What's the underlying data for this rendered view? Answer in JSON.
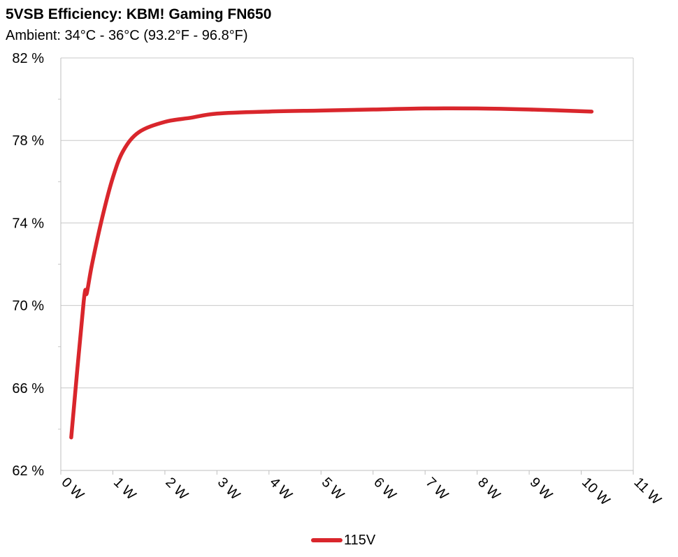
{
  "chart_data": {
    "type": "line",
    "title": "5VSB Efficiency: KBM! Gaming FN650",
    "subtitle": "Ambient: 34°C - 36°C (93.2°F - 96.8°F)",
    "xlabel": "",
    "ylabel": "",
    "xlim": [
      0,
      11
    ],
    "ylim": [
      62,
      82
    ],
    "x_ticks": [
      0,
      1,
      2,
      3,
      4,
      5,
      6,
      7,
      8,
      9,
      10,
      11
    ],
    "x_tick_labels": [
      "0 W",
      "1 W",
      "2 W",
      "3 W",
      "4 W",
      "5 W",
      "6 W",
      "7 W",
      "8 W",
      "9 W",
      "10 W",
      "11 W"
    ],
    "y_ticks": [
      62,
      66,
      70,
      74,
      78,
      82
    ],
    "y_tick_labels": [
      "62 %",
      "66 %",
      "70 %",
      "74 %",
      "78 %",
      "82 %"
    ],
    "grid": true,
    "legend_position": "bottom-center",
    "series": [
      {
        "name": "115V",
        "color": "#d9262c",
        "x": [
          0.2,
          0.44,
          0.5,
          0.6,
          0.8,
          1.0,
          1.2,
          1.5,
          2.0,
          2.5,
          3.0,
          4.0,
          5.0,
          6.0,
          7.0,
          8.0,
          9.0,
          10.2
        ],
        "y": [
          63.6,
          70.2,
          70.6,
          72.0,
          74.3,
          76.2,
          77.5,
          78.4,
          78.9,
          79.1,
          79.3,
          79.4,
          79.45,
          79.5,
          79.55,
          79.55,
          79.5,
          79.4
        ]
      }
    ]
  }
}
